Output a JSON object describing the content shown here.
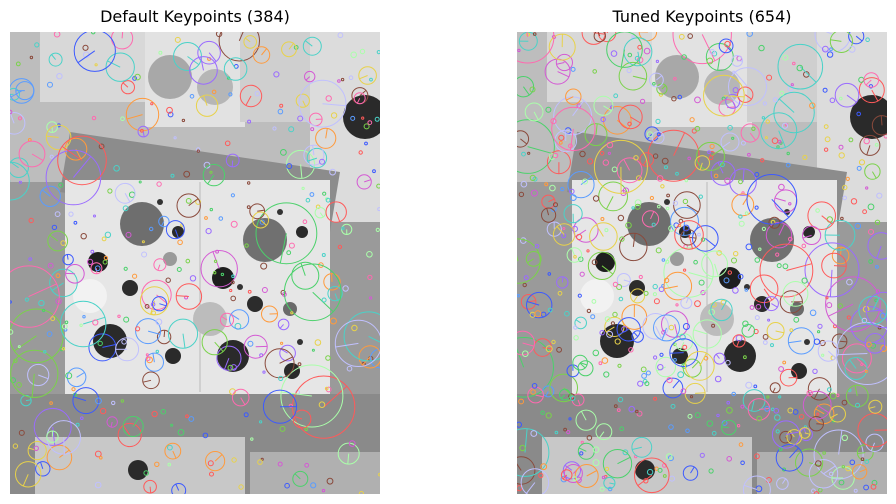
{
  "chart_data": [
    {
      "type": "image-keypoints",
      "title": "Default Keypoints (384)",
      "keypoint_count": 384,
      "axes": "off"
    },
    {
      "type": "image-keypoints",
      "title": "Tuned Keypoints (654)",
      "keypoint_count": 654,
      "axes": "off"
    }
  ],
  "palette": [
    "#ff5a5a",
    "#5a9cff",
    "#4bd16b",
    "#d45ad4",
    "#e8d24a",
    "#4ad2c8",
    "#ff9a3c",
    "#9a6bff",
    "#ff6ab0",
    "#7ad24a",
    "#3c5aff",
    "#c0c0ff",
    "#8a4a3c",
    "#aaffaa"
  ]
}
